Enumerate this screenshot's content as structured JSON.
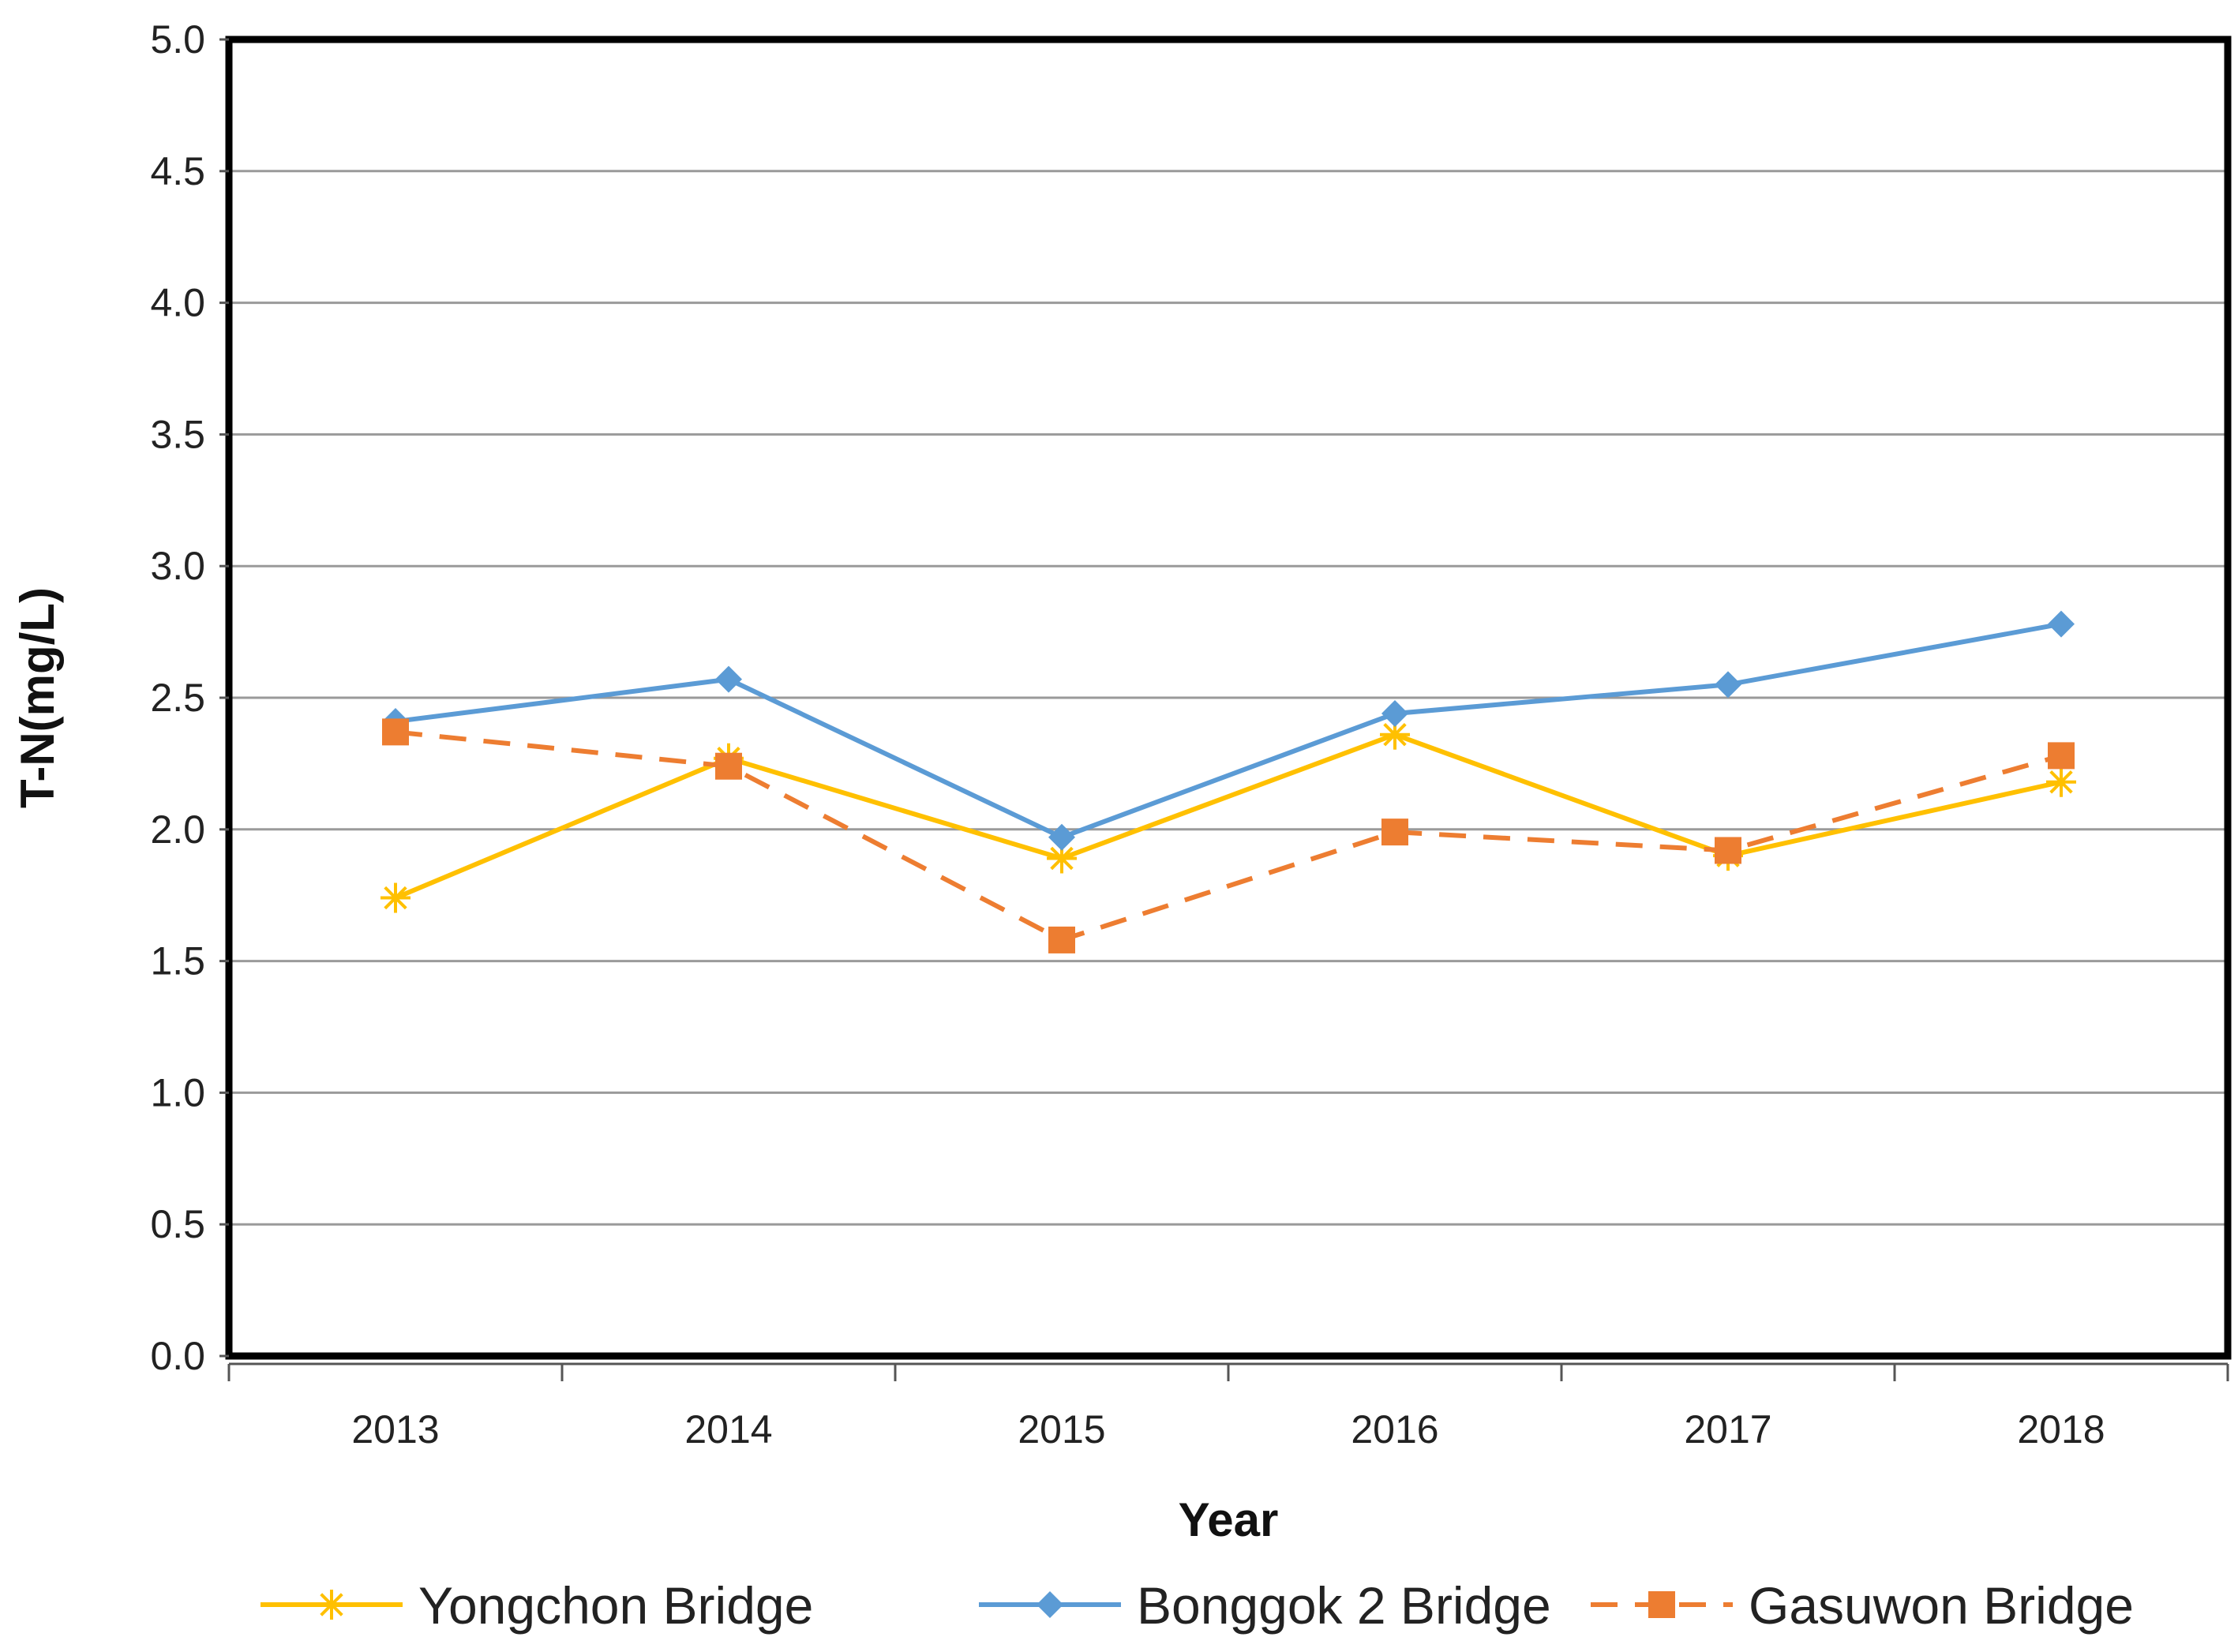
{
  "chart_data": {
    "type": "line",
    "categories": [
      "2013",
      "2014",
      "2015",
      "2016",
      "2017",
      "2018"
    ],
    "xlabel": "Year",
    "ylabel": "T-N(mg/L)",
    "ylim": [
      0,
      5
    ],
    "yticks": [
      "0.0",
      "0.5",
      "1.0",
      "1.5",
      "2.0",
      "2.5",
      "3.0",
      "3.5",
      "4.0",
      "4.5",
      "5.0"
    ],
    "grid": true,
    "legend_position": "bottom",
    "series": [
      {
        "name": "Yongchon Bridge",
        "values": [
          1.74,
          2.27,
          1.89,
          2.36,
          1.9,
          2.18
        ],
        "color": "#FFC000",
        "marker": "asterisk",
        "line_style": "solid"
      },
      {
        "name": "Bonggok 2 Bridge",
        "values": [
          2.41,
          2.57,
          1.97,
          2.44,
          2.55,
          2.78
        ],
        "color": "#5B9BD5",
        "marker": "diamond",
        "line_style": "solid"
      },
      {
        "name": "Gasuwon Bridge",
        "values": [
          2.37,
          2.24,
          1.58,
          1.99,
          1.92,
          2.28
        ],
        "color": "#ED7D31",
        "marker": "square",
        "line_style": "dashed"
      }
    ]
  }
}
